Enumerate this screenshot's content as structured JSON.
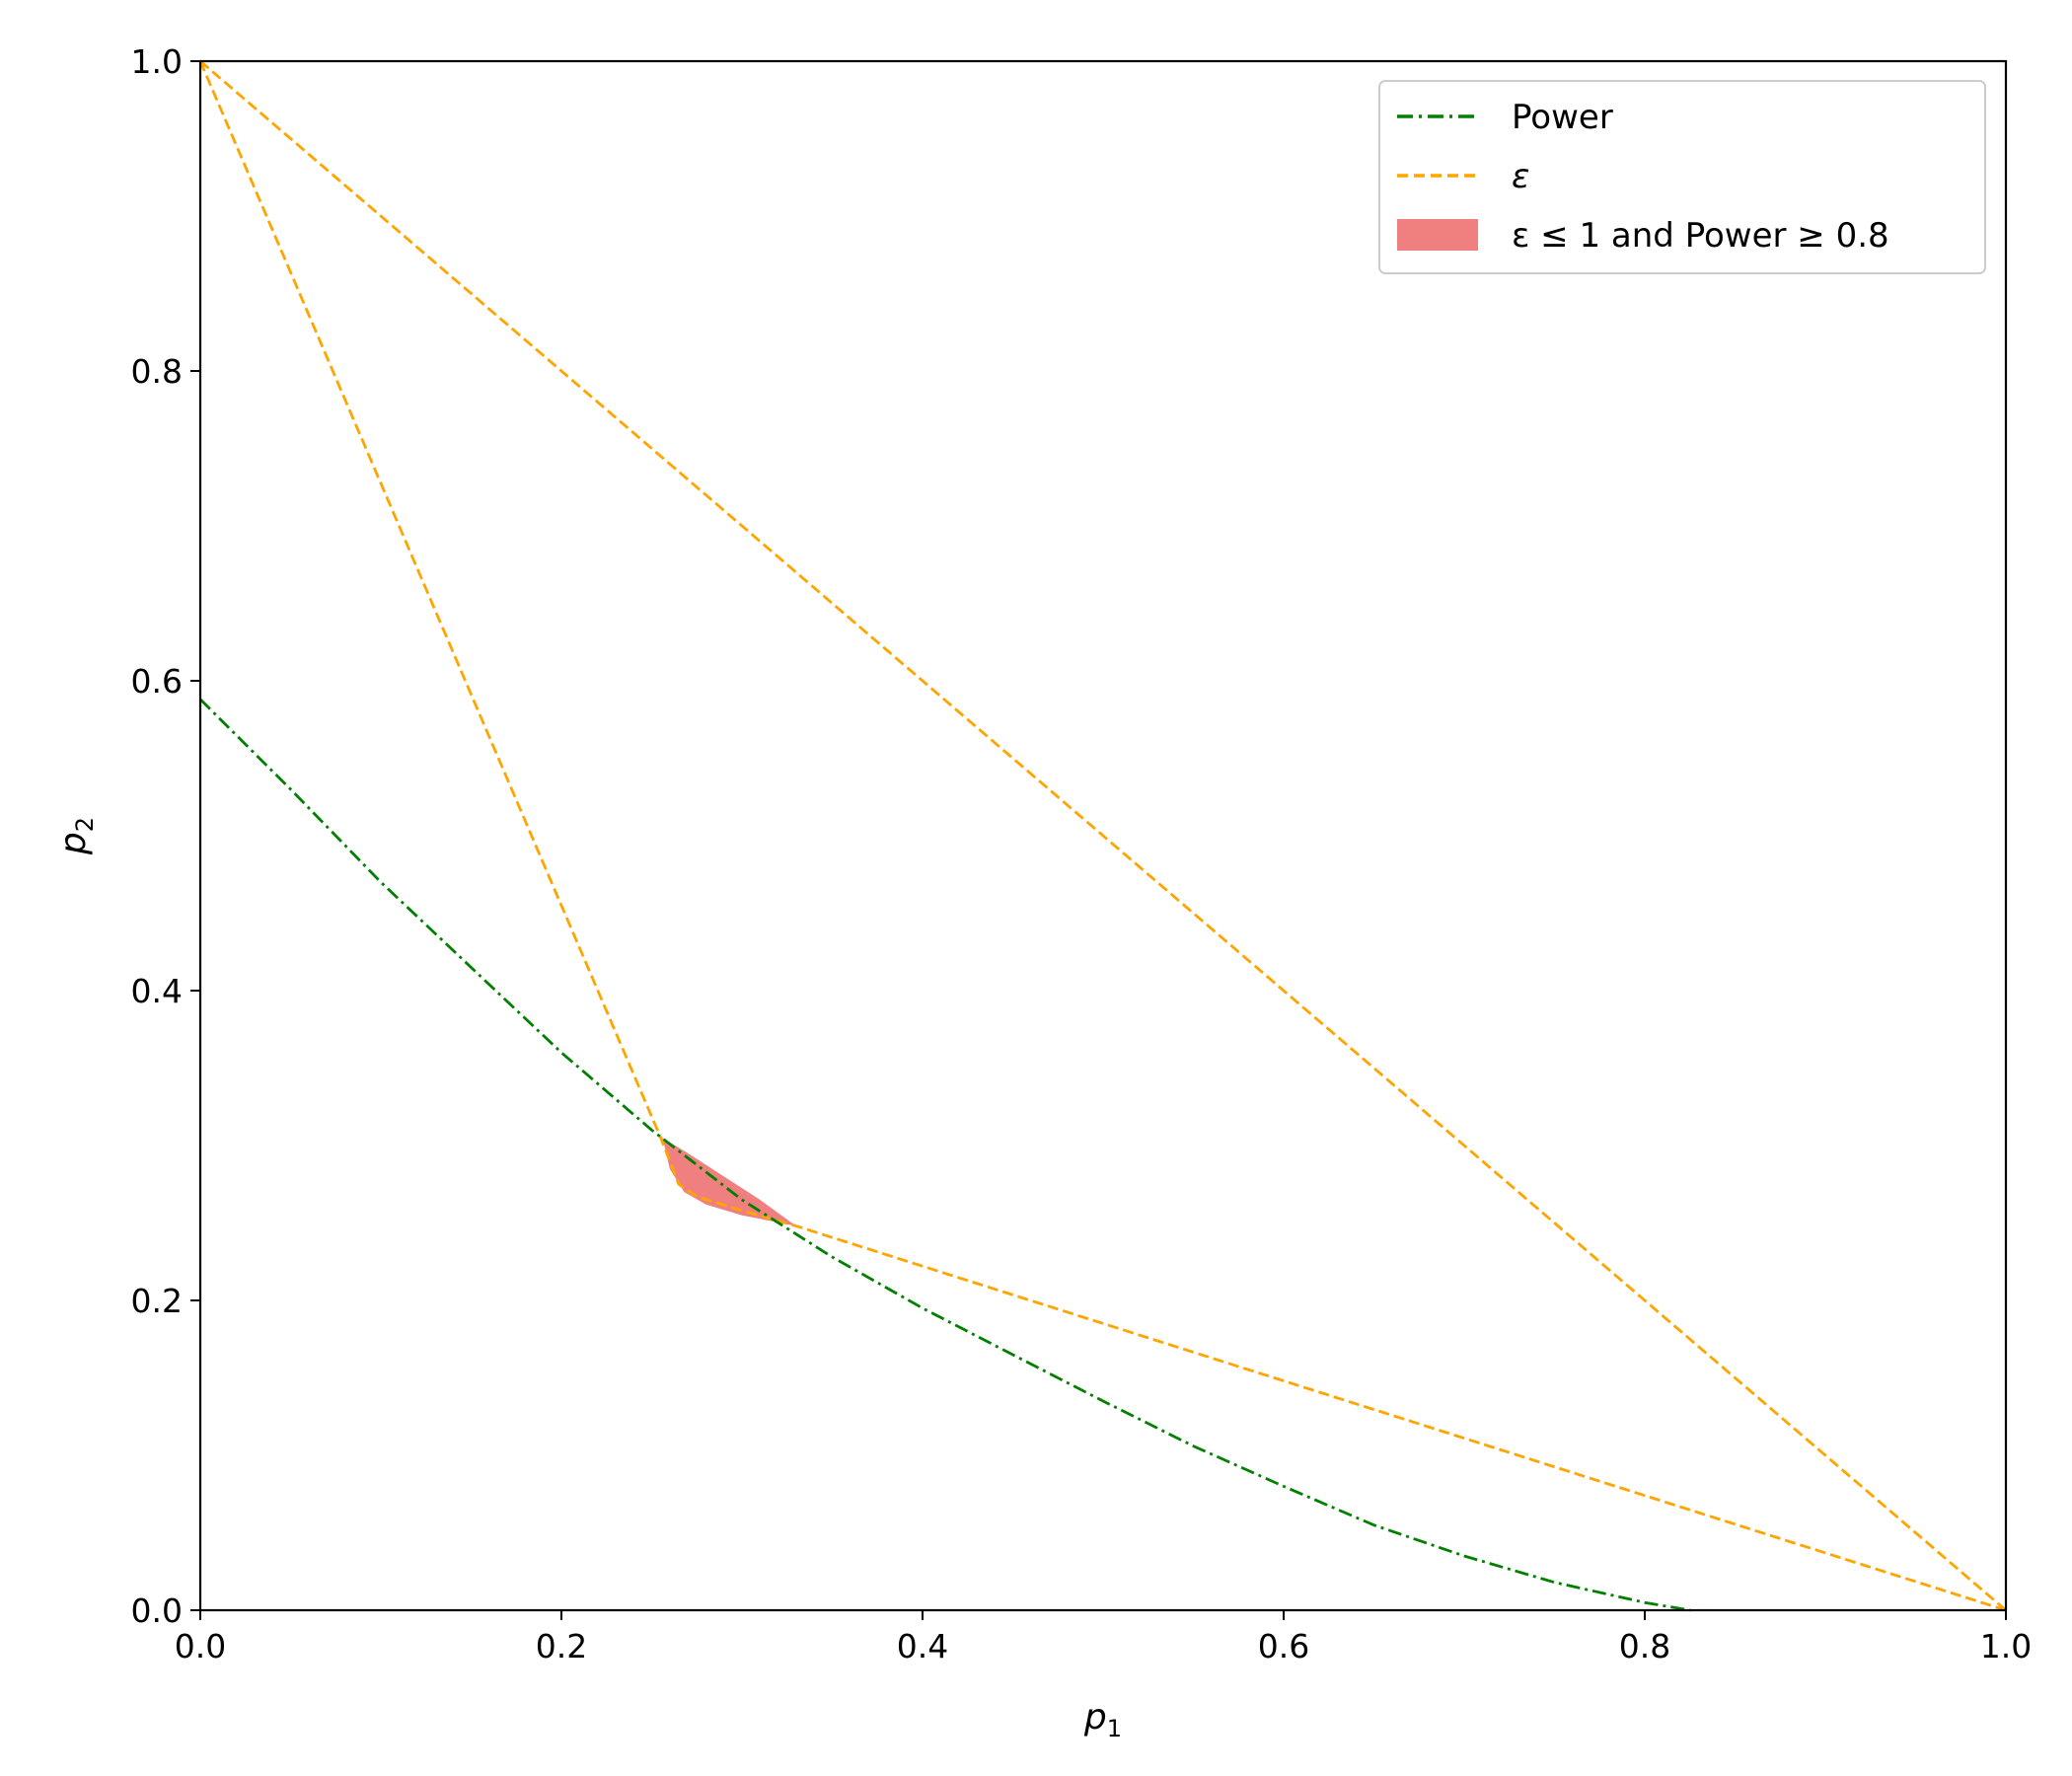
{
  "chart_data": {
    "type": "line",
    "xlabel": {
      "symbol": "p",
      "sub": "1"
    },
    "ylabel": {
      "symbol": "p",
      "sub": "2"
    },
    "xlim": [
      0.0,
      1.0
    ],
    "ylim": [
      0.0,
      1.0
    ],
    "x_ticks": [
      "0.0",
      "0.2",
      "0.4",
      "0.6",
      "0.8",
      "1.0"
    ],
    "y_ticks": [
      "0.0",
      "0.2",
      "0.4",
      "0.6",
      "0.8",
      "1.0"
    ],
    "grid": false,
    "legend_position": "top-right",
    "legend": {
      "power_label": "Power",
      "epsilon_label": "ε",
      "region_label": "ε ≤ 1 and Power ≥ 0.8"
    },
    "colors": {
      "power": "#008000",
      "epsilon": "#FFA500",
      "region": "#F08080"
    },
    "series": [
      {
        "name": "Power",
        "style": "dash-dot",
        "points": [
          [
            0.0,
            0.588
          ],
          [
            0.05,
            0.53
          ],
          [
            0.1,
            0.47
          ],
          [
            0.15,
            0.415
          ],
          [
            0.2,
            0.36
          ],
          [
            0.25,
            0.31
          ],
          [
            0.3,
            0.265
          ],
          [
            0.35,
            0.228
          ],
          [
            0.4,
            0.195
          ],
          [
            0.45,
            0.165
          ],
          [
            0.5,
            0.135
          ],
          [
            0.55,
            0.106
          ],
          [
            0.6,
            0.08
          ],
          [
            0.65,
            0.055
          ],
          [
            0.7,
            0.035
          ],
          [
            0.75,
            0.018
          ],
          [
            0.8,
            0.005
          ],
          [
            0.825,
            0.0
          ]
        ]
      },
      {
        "name": "ε",
        "style": "dashed",
        "segments": [
          [
            [
              0.0,
              1.0
            ],
            [
              1.0,
              0.0
            ]
          ],
          [
            [
              0.0,
              1.0
            ],
            [
              0.255,
              0.305
            ],
            [
              0.265,
              0.275
            ],
            [
              0.275,
              0.267
            ],
            [
              0.3,
              0.258
            ],
            [
              0.33,
              0.248
            ],
            [
              1.0,
              0.0
            ]
          ]
        ]
      }
    ],
    "region": {
      "name": "ε ≤ 1 and Power ≥ 0.8",
      "points": [
        [
          0.256,
          0.305
        ],
        [
          0.27,
          0.295
        ],
        [
          0.29,
          0.28
        ],
        [
          0.31,
          0.265
        ],
        [
          0.33,
          0.248
        ],
        [
          0.3,
          0.255
        ],
        [
          0.28,
          0.262
        ],
        [
          0.268,
          0.27
        ],
        [
          0.26,
          0.285
        ]
      ]
    }
  }
}
